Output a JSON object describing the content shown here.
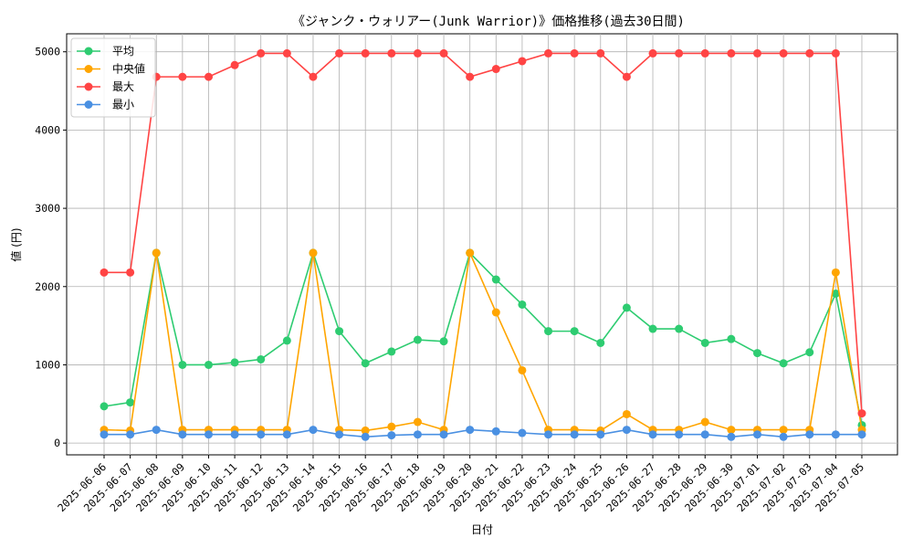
{
  "chart_data": {
    "type": "line",
    "title": "《ジャンク・ウォリアー(Junk Warrior)》価格推移(過去30日間)",
    "xlabel": "日付",
    "ylabel": "値 (円)",
    "ylim": [
      -150,
      5230
    ],
    "yticks": [
      0,
      1000,
      2000,
      3000,
      4000,
      5000
    ],
    "grid": true,
    "legend_position": "top-left",
    "categories": [
      "2025-06-06",
      "2025-06-07",
      "2025-06-08",
      "2025-06-09",
      "2025-06-10",
      "2025-06-11",
      "2025-06-12",
      "2025-06-13",
      "2025-06-14",
      "2025-06-15",
      "2025-06-16",
      "2025-06-17",
      "2025-06-18",
      "2025-06-19",
      "2025-06-20",
      "2025-06-21",
      "2025-06-22",
      "2025-06-23",
      "2025-06-24",
      "2025-06-25",
      "2025-06-26",
      "2025-06-27",
      "2025-06-28",
      "2025-06-29",
      "2025-06-30",
      "2025-07-01",
      "2025-07-02",
      "2025-07-03",
      "2025-07-04",
      "2025-07-05"
    ],
    "series": [
      {
        "name": "平均",
        "color": "#2ecc71",
        "values": [
          470,
          520,
          2430,
          1000,
          1000,
          1030,
          1070,
          1310,
          2430,
          1430,
          1020,
          1170,
          1320,
          1300,
          2430,
          2090,
          1770,
          1430,
          1430,
          1280,
          1730,
          1460,
          1460,
          1280,
          1330,
          1150,
          1020,
          1160,
          1910,
          230
        ]
      },
      {
        "name": "中央値",
        "color": "#ffa500",
        "values": [
          170,
          160,
          2430,
          170,
          170,
          170,
          170,
          170,
          2430,
          170,
          160,
          210,
          270,
          170,
          2430,
          1670,
          930,
          170,
          170,
          160,
          370,
          170,
          170,
          270,
          170,
          170,
          170,
          170,
          2180,
          170
        ]
      },
      {
        "name": "最大",
        "color": "#ff4444",
        "values": [
          2180,
          2180,
          4680,
          4680,
          4680,
          4830,
          4980,
          4980,
          4680,
          4980,
          4980,
          4980,
          4980,
          4980,
          4680,
          4780,
          4880,
          4980,
          4980,
          4980,
          4680,
          4980,
          4980,
          4980,
          4980,
          4980,
          4980,
          4980,
          4980,
          380
        ]
      },
      {
        "name": "最小",
        "color": "#4a90e2",
        "values": [
          110,
          110,
          170,
          110,
          110,
          110,
          110,
          110,
          170,
          110,
          80,
          100,
          110,
          110,
          170,
          150,
          130,
          110,
          110,
          110,
          170,
          110,
          110,
          110,
          80,
          110,
          80,
          110,
          110,
          110
        ]
      }
    ]
  }
}
